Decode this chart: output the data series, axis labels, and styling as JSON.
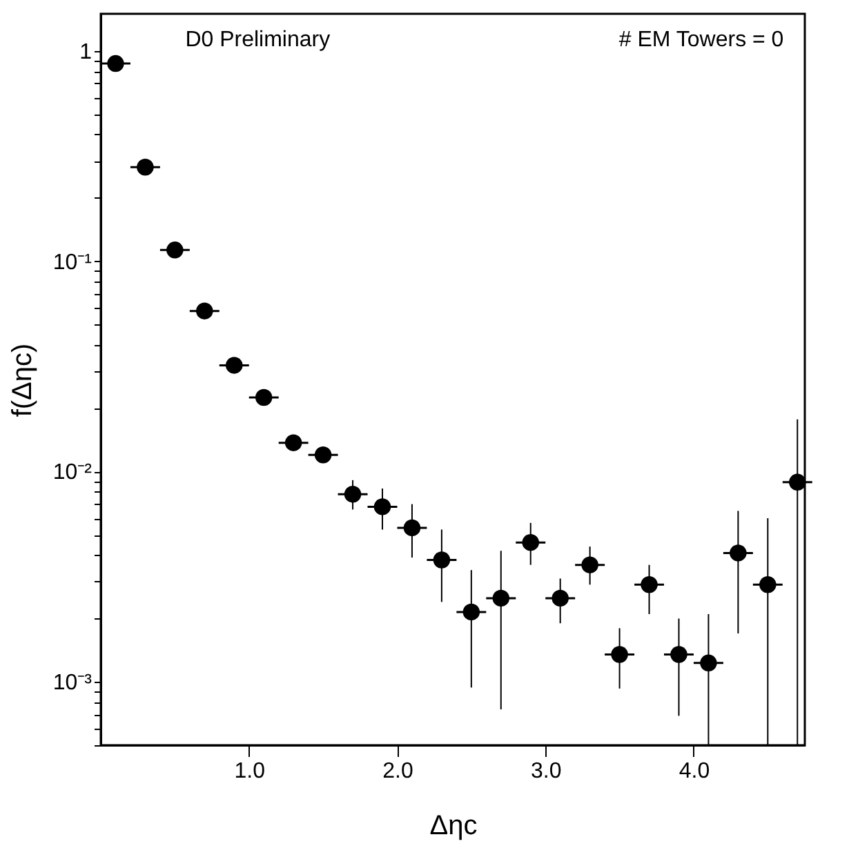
{
  "chart_data": {
    "type": "scatter",
    "xlabel": "Δηc",
    "ylabel": "f(Δηc)",
    "annotations": [
      "D0 Preliminary",
      "# EM Towers = 0"
    ],
    "x": [
      0.1,
      0.3,
      0.5,
      0.7,
      0.9,
      1.1,
      1.3,
      1.5,
      1.7,
      1.9,
      2.1,
      2.3,
      2.5,
      2.7,
      2.9,
      3.1,
      3.3,
      3.5,
      3.7,
      3.9,
      4.1,
      4.3,
      4.5,
      4.7
    ],
    "series": [
      {
        "color": "#000000",
        "values": [
          0.87,
          0.28,
          0.113,
          0.058,
          0.032,
          0.0225,
          0.0137,
          0.012,
          0.0078,
          0.0068,
          0.0054,
          0.0038,
          0.00215,
          0.0025,
          0.0046,
          0.0025,
          0.0036,
          0.00135,
          0.0029,
          0.00135,
          0.00123,
          0.0041,
          0.0029,
          0.0089
        ],
        "errors": [
          null,
          null,
          null,
          null,
          null,
          null,
          null,
          null,
          [
            0.0066,
            0.0091
          ],
          [
            0.0053,
            0.0083
          ],
          [
            0.0039,
            0.007
          ],
          [
            0.0024,
            0.0053
          ],
          [
            0.00094,
            0.0034
          ],
          [
            0.00074,
            0.0042
          ],
          [
            0.0036,
            0.0057
          ],
          [
            0.0019,
            0.0031
          ],
          [
            0.0029,
            0.0044
          ],
          [
            0.00093,
            0.0018
          ],
          [
            0.0021,
            0.0036
          ],
          [
            0.00069,
            0.002
          ],
          [
            0.0005,
            0.0021
          ],
          [
            0.0017,
            0.0065
          ],
          [
            0.0005,
            0.006
          ],
          [
            0.0005,
            0.0177
          ]
        ],
        "xerrors": [
          0.1,
          0.1,
          0.1,
          0.1,
          0.1,
          0.1,
          0.1,
          0.1,
          0.1,
          0.1,
          0.1,
          0.1,
          0.1,
          0.1,
          0.1,
          0.1,
          0.1,
          0.1,
          0.1,
          0.1,
          0.1,
          0.1,
          0.1,
          0.1
        ]
      }
    ],
    "log": "y",
    "marker": "circle",
    "grid": false,
    "xlim": [
      0,
      4.75
    ],
    "xticks": [
      {
        "value": 1,
        "label": "1.0"
      },
      {
        "value": 2,
        "label": "2.0"
      },
      {
        "value": 3,
        "label": "3.0"
      },
      {
        "value": 4,
        "label": "4.0"
      }
    ],
    "ylim": [
      0.0005,
      1.5
    ],
    "yticks": [
      {
        "value": 0.0005,
        "label": null
      },
      {
        "value": 0.0006,
        "label": null
      },
      {
        "value": 0.0007,
        "label": null
      },
      {
        "value": 0.0008,
        "label": null
      },
      {
        "value": 0.0009,
        "label": null
      },
      {
        "value": 0.001,
        "label": "10⁻³"
      },
      {
        "value": 0.002,
        "label": null
      },
      {
        "value": 0.003,
        "label": null
      },
      {
        "value": 0.004,
        "label": null
      },
      {
        "value": 0.005,
        "label": null
      },
      {
        "value": 0.006,
        "label": null
      },
      {
        "value": 0.007,
        "label": null
      },
      {
        "value": 0.008,
        "label": null
      },
      {
        "value": 0.009,
        "label": null
      },
      {
        "value": 0.01,
        "label": "10⁻²"
      },
      {
        "value": 0.02,
        "label": null
      },
      {
        "value": 0.03,
        "label": null
      },
      {
        "value": 0.04,
        "label": null
      },
      {
        "value": 0.05,
        "label": null
      },
      {
        "value": 0.06,
        "label": null
      },
      {
        "value": 0.07,
        "label": null
      },
      {
        "value": 0.08,
        "label": null
      },
      {
        "value": 0.09,
        "label": null
      },
      {
        "value": 0.1,
        "label": "10⁻¹"
      },
      {
        "value": 0.2,
        "label": null
      },
      {
        "value": 0.3,
        "label": null
      },
      {
        "value": 0.4,
        "label": null
      },
      {
        "value": 0.5,
        "label": null
      },
      {
        "value": 0.6,
        "label": null
      },
      {
        "value": 0.7,
        "label": null
      },
      {
        "value": 0.8,
        "label": null
      },
      {
        "value": 0.9,
        "label": null
      },
      {
        "value": 1,
        "label": "1"
      }
    ]
  }
}
